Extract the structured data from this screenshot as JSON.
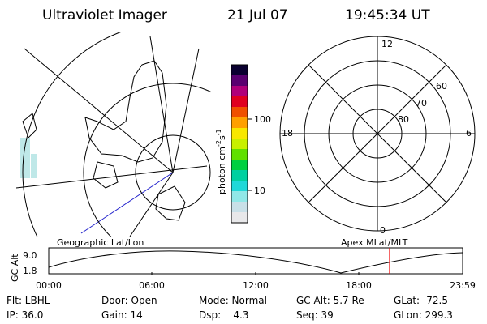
{
  "header": {
    "title": "Ultraviolet Imager",
    "date": "21 Jul 07",
    "time": "19:45:34 UT"
  },
  "colorbar": {
    "label": "photon cm",
    "exp1": "-2",
    "label2": "s",
    "exp2": "-1",
    "ticks": [
      "100",
      "10"
    ]
  },
  "polar": {
    "mlt_labels": [
      "12",
      "18",
      "6",
      "0"
    ],
    "mlat_labels": [
      "60",
      "70",
      "80"
    ]
  },
  "panels": {
    "left": "Geographic Lat/Lon",
    "right": "Apex MLat/MLT"
  },
  "altitude": {
    "label": "GC Alt",
    "yticks": [
      "9.0",
      "1.8"
    ],
    "xticks": [
      "00:00",
      "06:00",
      "12:00",
      "18:00",
      "23:59"
    ]
  },
  "info": [
    "Flt: LBHL",
    "IP: 36.0",
    "Door: Open",
    "Gain: 14",
    "Mode: Normal",
    "Dsp:    4.3",
    "GC Alt: 5.7 Re",
    "Seq: 39",
    "GLat: -72.5",
    "GLon: 299.3"
  ]
}
